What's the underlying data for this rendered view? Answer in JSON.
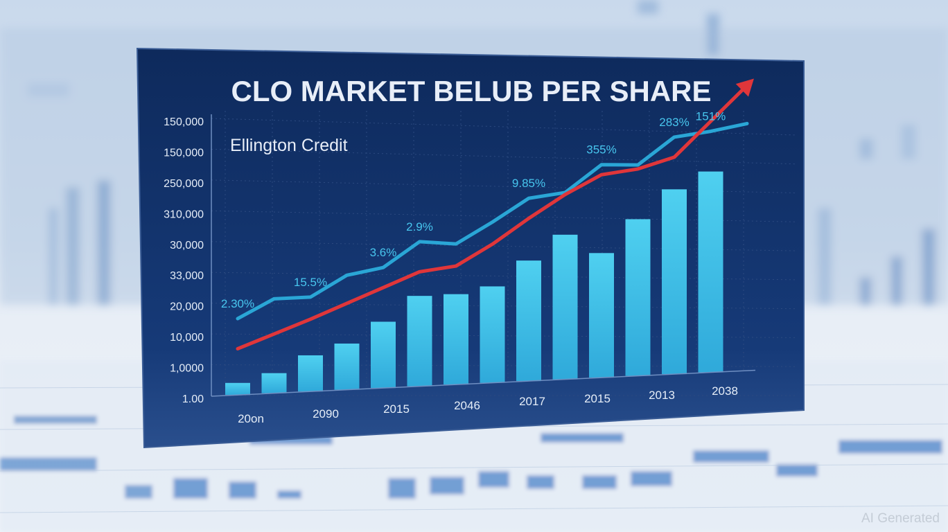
{
  "chart_data": {
    "type": "bar",
    "title": "CLO MARKET BELUB PER SHARE",
    "subtitle": "Ellington Credit",
    "y_tick_labels": [
      "150,000",
      "150,000",
      "250,000",
      "310,000",
      "30,000",
      "33,000",
      "20,000",
      "10,000",
      "1,0000",
      "1.00"
    ],
    "x_tick_labels": [
      "20on",
      "2090",
      "2015",
      "2046",
      "2017",
      "2015",
      "2013",
      "2038"
    ],
    "bars": [
      {
        "index": 1,
        "value": 0.06
      },
      {
        "index": 2,
        "value": 0.1
      },
      {
        "index": 3,
        "value": 0.18
      },
      {
        "index": 4,
        "value": 0.23
      },
      {
        "index": 5,
        "value": 0.33
      },
      {
        "index": 6,
        "value": 0.45
      },
      {
        "index": 7,
        "value": 0.45
      },
      {
        "index": 8,
        "value": 0.48
      },
      {
        "index": 9,
        "value": 0.6
      },
      {
        "index": 10,
        "value": 0.72
      },
      {
        "index": 11,
        "value": 0.62
      },
      {
        "index": 12,
        "value": 0.78
      },
      {
        "index": 13,
        "value": 0.92
      },
      {
        "index": 14,
        "value": 1.0
      }
    ],
    "series": [
      {
        "color": "#2aa6d6",
        "points": [
          {
            "x": 1,
            "y": 0.38
          },
          {
            "x": 2,
            "y": 0.47
          },
          {
            "x": 3,
            "y": 0.47
          },
          {
            "x": 4,
            "y": 0.57
          },
          {
            "x": 5,
            "y": 0.6
          },
          {
            "x": 6,
            "y": 0.72
          },
          {
            "x": 7,
            "y": 0.7
          },
          {
            "x": 8,
            "y": 0.8
          },
          {
            "x": 9,
            "y": 0.91
          },
          {
            "x": 10,
            "y": 0.93
          },
          {
            "x": 11,
            "y": 1.06
          },
          {
            "x": 12,
            "y": 1.05
          },
          {
            "x": 13,
            "y": 1.18
          },
          {
            "x": 14,
            "y": 1.2
          },
          {
            "x": 15,
            "y": 1.23
          }
        ],
        "labels": [
          {
            "x": 1,
            "text": "2.30%"
          },
          {
            "x": 3,
            "text": "15.5%"
          },
          {
            "x": 5,
            "text": "3.6%"
          },
          {
            "x": 6,
            "text": "2.9%"
          },
          {
            "x": 9,
            "text": "9.85%"
          },
          {
            "x": 11,
            "text": "355%"
          },
          {
            "x": 13,
            "text": "283%"
          },
          {
            "x": 14,
            "text": "151%"
          }
        ]
      },
      {
        "color": "#e0363a",
        "arrow": true,
        "points": [
          {
            "x": 1,
            "y": 0.23
          },
          {
            "x": 3,
            "y": 0.36
          },
          {
            "x": 5,
            "y": 0.5
          },
          {
            "x": 6,
            "y": 0.57
          },
          {
            "x": 7,
            "y": 0.59
          },
          {
            "x": 8,
            "y": 0.69
          },
          {
            "x": 9,
            "y": 0.81
          },
          {
            "x": 10,
            "y": 0.92
          },
          {
            "x": 11,
            "y": 1.01
          },
          {
            "x": 12,
            "y": 1.03
          },
          {
            "x": 13,
            "y": 1.08
          },
          {
            "x": 14,
            "y": 1.25
          },
          {
            "x": 15,
            "y": 1.42
          }
        ]
      }
    ],
    "grid": true
  },
  "watermark": "AI Generated",
  "colors": {
    "board": "#0f2c5e",
    "board_edge": "#2a4b86",
    "bar": "#3fc1e6",
    "grid": "#2c4a80",
    "text": "#e6eef8",
    "cyan_label": "#48c6ee"
  }
}
